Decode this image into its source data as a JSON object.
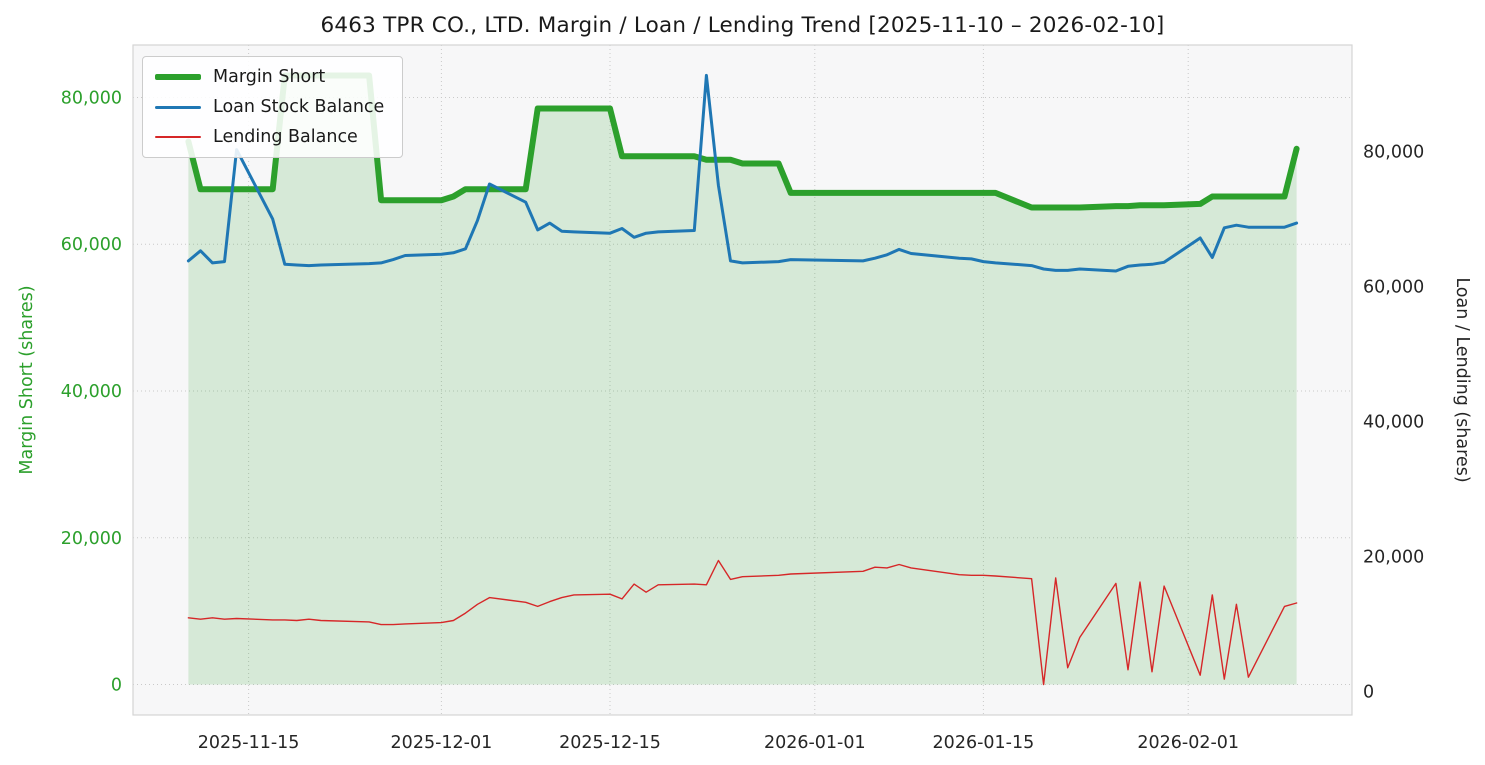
{
  "chart_data": {
    "type": "line",
    "title": "6463 TPR CO., LTD. Margin / Loan / Lending Trend [2025-11-10 – 2026-02-10]",
    "x_pad_days": 4.6,
    "x_dates": [
      "2025-11-10",
      "2025-11-11",
      "2025-11-12",
      "2025-11-13",
      "2025-11-14",
      "2025-11-17",
      "2025-11-18",
      "2025-11-19",
      "2025-11-20",
      "2025-11-21",
      "2025-11-25",
      "2025-11-26",
      "2025-11-27",
      "2025-11-28",
      "2025-12-01",
      "2025-12-02",
      "2025-12-03",
      "2025-12-04",
      "2025-12-05",
      "2025-12-08",
      "2025-12-09",
      "2025-12-10",
      "2025-12-11",
      "2025-12-12",
      "2025-12-15",
      "2025-12-16",
      "2025-12-17",
      "2025-12-18",
      "2025-12-19",
      "2025-12-22",
      "2025-12-23",
      "2025-12-24",
      "2025-12-25",
      "2025-12-26",
      "2025-12-29",
      "2025-12-30",
      "2026-01-05",
      "2026-01-06",
      "2026-01-07",
      "2026-01-08",
      "2026-01-09",
      "2026-01-13",
      "2026-01-14",
      "2026-01-15",
      "2026-01-16",
      "2026-01-19",
      "2026-01-20",
      "2026-01-21",
      "2026-01-22",
      "2026-01-23",
      "2026-01-26",
      "2026-01-27",
      "2026-01-28",
      "2026-01-29",
      "2026-01-30",
      "2026-02-02",
      "2026-02-03",
      "2026-02-04",
      "2026-02-05",
      "2026-02-06",
      "2026-02-09",
      "2026-02-10"
    ],
    "x_ticks": [
      {
        "date": "2025-11-15",
        "label": "2025-11-15"
      },
      {
        "date": "2025-12-01",
        "label": "2025-12-01"
      },
      {
        "date": "2025-12-15",
        "label": "2025-12-15"
      },
      {
        "date": "2026-01-01",
        "label": "2026-01-01"
      },
      {
        "date": "2026-01-15",
        "label": "2026-01-15"
      },
      {
        "date": "2026-02-01",
        "label": "2026-02-01"
      }
    ],
    "left_axis": {
      "label": "Margin Short (shares)",
      "color": "#2ca02c",
      "ticks": [
        0,
        20000,
        40000,
        60000,
        80000
      ],
      "range": [
        -4150,
        87150
      ]
    },
    "right_axis": {
      "label": "Loan / Lending (shares)",
      "color": "#262626",
      "ticks": [
        0,
        20000,
        40000,
        60000,
        80000
      ],
      "range": [
        -3500,
        95800
      ]
    },
    "x_tick_color": "#262626",
    "grid": {
      "color": "#c9c9c9",
      "style": "dotted"
    },
    "plot_bg": "#f7f7f8",
    "frame_color": "#d4d4d4",
    "legend": {
      "position": "top-left"
    },
    "series": [
      {
        "name": "Margin Short",
        "axis": "left",
        "color": "#2ca02c",
        "width": 6,
        "fill": true,
        "fill_opacity": 0.16,
        "values": [
          74000,
          67500,
          67500,
          67500,
          67500,
          67500,
          83000,
          83000,
          83000,
          83000,
          83000,
          66000,
          66000,
          66000,
          66000,
          66500,
          67500,
          67500,
          67500,
          67500,
          78500,
          78500,
          78500,
          78500,
          78500,
          72000,
          72000,
          72000,
          72000,
          72000,
          71500,
          71500,
          71500,
          71000,
          71000,
          67000,
          67000,
          67000,
          67000,
          67000,
          67000,
          67000,
          67000,
          67000,
          67000,
          65000,
          65000,
          65000,
          65000,
          65000,
          65200,
          65200,
          65300,
          65300,
          65300,
          65500,
          66500,
          66500,
          66500,
          66500,
          66500,
          73000
        ]
      },
      {
        "name": "Loan Stock Balance",
        "axis": "right",
        "color": "#1f77b4",
        "width": 3,
        "fill": false,
        "values": [
          63800,
          65300,
          63500,
          63700,
          80300,
          70000,
          63300,
          63200,
          63100,
          63200,
          63400,
          63500,
          64000,
          64600,
          64800,
          65000,
          65600,
          69800,
          75200,
          72500,
          68400,
          69400,
          68200,
          68100,
          67900,
          68600,
          67300,
          67900,
          68100,
          68300,
          91300,
          75000,
          63800,
          63500,
          63700,
          64000,
          63800,
          64200,
          64700,
          65500,
          64900,
          64200,
          64100,
          63700,
          63500,
          63100,
          62600,
          62400,
          62400,
          62600,
          62300,
          63000,
          63200,
          63300,
          63600,
          67200,
          64300,
          68700,
          69100,
          68800,
          68800,
          69400
        ]
      },
      {
        "name": "Lending Balance",
        "axis": "right",
        "color": "#d62728",
        "width": 1.4,
        "fill": false,
        "values": [
          10900,
          10700,
          10900,
          10700,
          10800,
          10600,
          10600,
          10500,
          10700,
          10500,
          10300,
          9900,
          9900,
          10000,
          10200,
          10500,
          11600,
          12900,
          13900,
          13200,
          12600,
          13300,
          13900,
          14300,
          14400,
          13700,
          15900,
          14700,
          15800,
          15900,
          15800,
          19400,
          16600,
          17000,
          17200,
          17400,
          17800,
          18400,
          18300,
          18800,
          18300,
          17300,
          17200,
          17200,
          17100,
          16700,
          1000,
          16800,
          3500,
          8000,
          16000,
          3200,
          16200,
          2900,
          15600,
          2400,
          14300,
          1800,
          12900,
          2100,
          12600,
          13100
        ]
      }
    ]
  }
}
